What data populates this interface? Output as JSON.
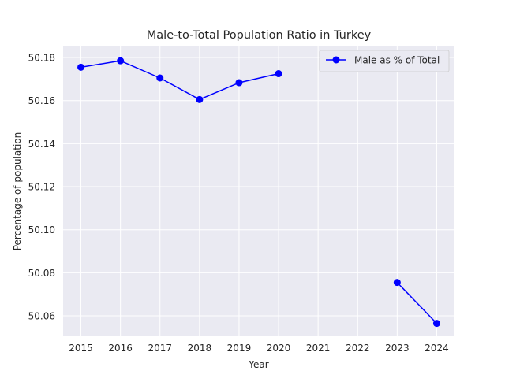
{
  "chart_data": {
    "type": "line",
    "title": "Male-to-Total Population Ratio in Turkey",
    "xlabel": "Year",
    "ylabel": "Percentage of population",
    "x": [
      2015,
      2016,
      2017,
      2018,
      2019,
      2020,
      2021,
      2022,
      2023,
      2024
    ],
    "x_ticks": [
      "2015",
      "2016",
      "2017",
      "2018",
      "2019",
      "2020",
      "2021",
      "2022",
      "2023",
      "2024"
    ],
    "y_ticks": [
      "50.06",
      "50.08",
      "50.10",
      "50.12",
      "50.14",
      "50.16",
      "50.18"
    ],
    "ylim": [
      50.0505,
      50.1855
    ],
    "xlim": [
      2014.55,
      2024.45
    ],
    "grid": true,
    "legend_position": "top-right",
    "series": [
      {
        "name": "Male as % of Total",
        "color": "#0000ff",
        "marker": "circle",
        "values": [
          50.1755,
          50.1785,
          50.1705,
          50.1605,
          50.1683,
          50.1725,
          null,
          null,
          50.0755,
          50.0565
        ]
      }
    ]
  },
  "colors": {
    "plot_background": "#eaeaf2",
    "grid": "#ffffff",
    "text": "#262626"
  }
}
